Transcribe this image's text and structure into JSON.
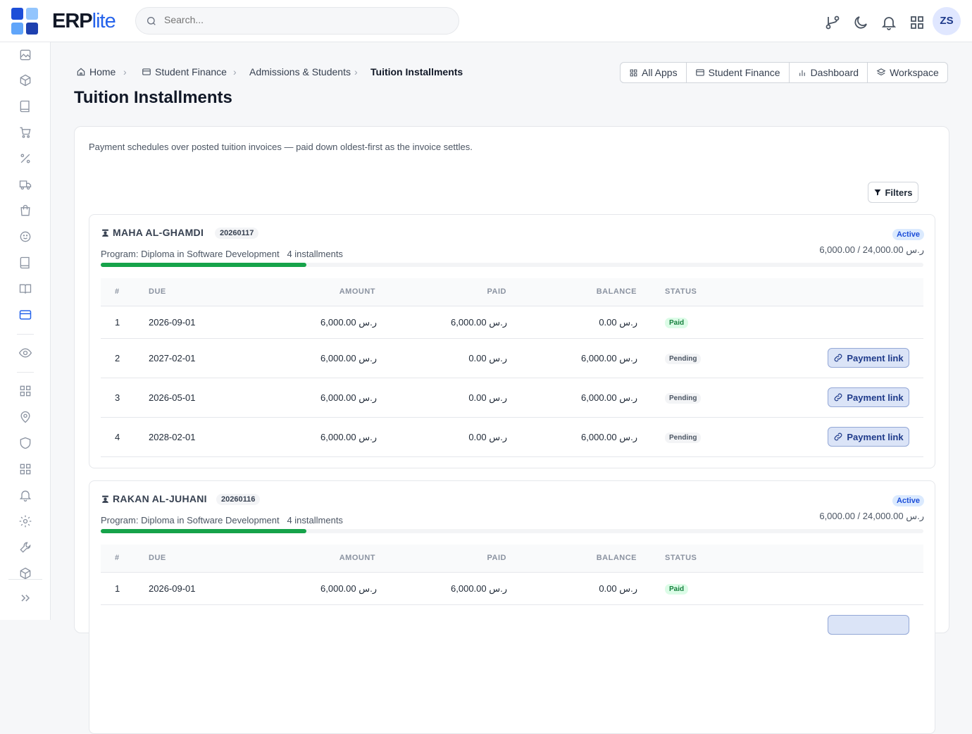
{
  "brand": {
    "name": "ERP",
    "suffix": "lite",
    "colors": [
      "#1d4ed8",
      "#93c5fd",
      "#60a5fa",
      "#1e40af"
    ]
  },
  "search": {
    "placeholder": "Search..."
  },
  "user": {
    "initials": "ZS"
  },
  "topbar_icons": [
    "git-branch-icon",
    "moon-icon",
    "bell-icon",
    "apps-grid-icon"
  ],
  "sidebar": {
    "items": [
      "image-icon",
      "box-icon",
      "book-icon",
      "cart-icon",
      "percent-icon",
      "truck-icon",
      "bag-icon",
      "smile-icon",
      "notebook-icon",
      "book-open-icon",
      "credit-card-icon",
      "eye-icon",
      "grid-icon",
      "map-pin-icon",
      "shield-icon",
      "grid-icon",
      "bell-icon",
      "gear-icon",
      "wrench-icon",
      "package-icon",
      "chevrons-right-icon"
    ],
    "active": "credit-card-icon"
  },
  "breadcrumb": {
    "home": "Home",
    "finance": "Student Finance",
    "admissions": "Admissions & Students",
    "current": "Tuition Installments"
  },
  "page": {
    "title": "Tuition Installments",
    "description": "Payment schedules over posted tuition invoices — paid down oldest-first as the invoice settles."
  },
  "appnav": {
    "all_apps": "All Apps",
    "finance": "Student Finance",
    "dashboard": "Dashboard",
    "workspace": "Workspace"
  },
  "filters_label": "Filters",
  "table_headers": {
    "num": "#",
    "due": "DUE",
    "amount": "AMOUNT",
    "paid": "PAID",
    "balance": "BALANCE",
    "status": "STATUS"
  },
  "payment_link_label": "Payment link",
  "students": [
    {
      "name": "MAHA AL-GHAMDI",
      "id": "20260117",
      "program": "Program: Diploma in Software Development",
      "installments_count": "4 installments",
      "status": "Active",
      "totals": "6,000.00 / 24,000.00 ر.س",
      "progress": 0.25,
      "rows": [
        {
          "n": "1",
          "due": "2026-09-01",
          "amount": "6,000.00 ر.س",
          "paid": "6,000.00 ر.س",
          "balance": "0.00 ر.س",
          "status": "Paid"
        },
        {
          "n": "2",
          "due": "2027-02-01",
          "amount": "6,000.00 ر.س",
          "paid": "0.00 ر.س",
          "balance": "6,000.00 ر.س",
          "status": "Pending"
        },
        {
          "n": "3",
          "due": "2026-05-01",
          "amount": "6,000.00 ر.س",
          "paid": "0.00 ر.س",
          "balance": "6,000.00 ر.س",
          "status": "Pending"
        },
        {
          "n": "4",
          "due": "2028-02-01",
          "amount": "6,000.00 ر.س",
          "paid": "0.00 ر.س",
          "balance": "6,000.00 ر.س",
          "status": "Pending"
        }
      ]
    },
    {
      "name": "RAKAN AL-JUHANI",
      "id": "20260116",
      "program": "Program: Diploma in Software Development",
      "installments_count": "4 installments",
      "status": "Active",
      "totals": "6,000.00 / 24,000.00 ر.س",
      "progress": 0.25,
      "rows": [
        {
          "n": "1",
          "due": "2026-09-01",
          "amount": "6,000.00 ر.س",
          "paid": "6,000.00 ر.س",
          "balance": "0.00 ر.س",
          "status": "Paid"
        }
      ]
    }
  ]
}
